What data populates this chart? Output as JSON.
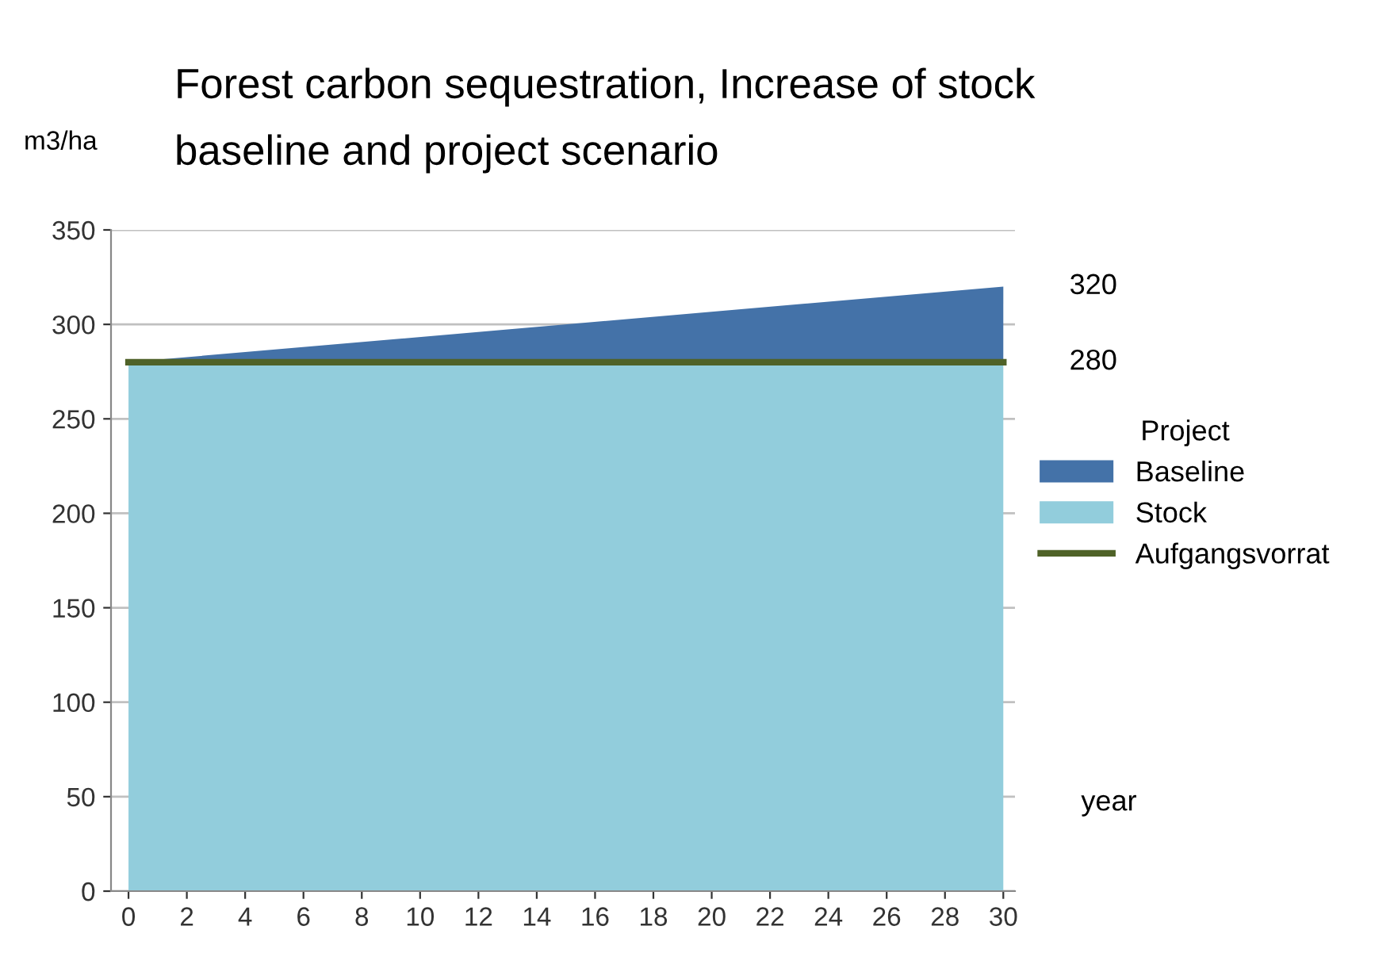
{
  "chart_data": {
    "type": "area",
    "stacked": true,
    "title": "Forest carbon sequestration, Increase of stock",
    "subtitle": "baseline and project scenario",
    "ylabel": "m3/ha",
    "xlabel": "year",
    "legend_title": "Project",
    "x": [
      0,
      30
    ],
    "series": [
      {
        "name": "Stock",
        "color": "#92cddc",
        "values": [
          280,
          280
        ]
      },
      {
        "name": "Baseline",
        "color": "#4472a8",
        "values": [
          0,
          40
        ]
      },
      {
        "name": "Aufgangsvorrat",
        "type": "line",
        "color": "#4f6228",
        "values": [
          280,
          280
        ]
      }
    ],
    "annotations": [
      {
        "text": "320",
        "x": 30,
        "y": 320
      },
      {
        "text": "280",
        "x": 30,
        "y": 280
      }
    ],
    "xlim": [
      -0.6,
      30.4
    ],
    "xticks": [
      0,
      2,
      4,
      6,
      8,
      10,
      12,
      14,
      16,
      18,
      20,
      22,
      24,
      26,
      28,
      30
    ],
    "ylim": [
      0,
      350
    ],
    "yticks": [
      0,
      50,
      100,
      150,
      200,
      250,
      300,
      350
    ],
    "grid": "y",
    "legend": "right"
  }
}
